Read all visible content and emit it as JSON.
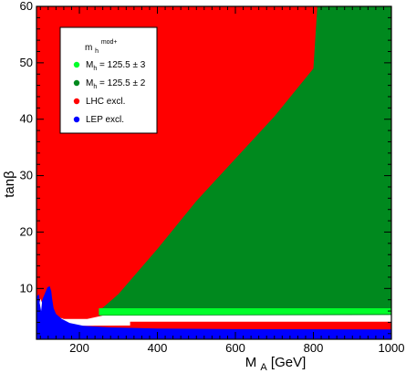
{
  "chart_data": {
    "type": "area",
    "title": "",
    "xlabel": {
      "main": "M",
      "sub": "A",
      "unit": " [GeV]"
    },
    "ylabel": {
      "main": "tan",
      "greek": "β"
    },
    "xlim": [
      90,
      1000
    ],
    "ylim": [
      1,
      60
    ],
    "x_ticks": [
      200,
      400,
      600,
      800,
      1000
    ],
    "y_ticks": [
      10,
      20,
      30,
      40,
      50,
      60
    ],
    "grid": false,
    "legend_position": "top-left",
    "legend_title": {
      "main": "m",
      "sub": "h",
      "sup": "mod+"
    },
    "series": [
      {
        "name": "LHC excl.",
        "label_main": "LHC excl.",
        "label_sub": "",
        "label_rest": "",
        "color": "#ff0000",
        "region": "above LHC exclusion boundary (high tanβ, low M_A)",
        "boundary": {
          "x": [
            90,
            150,
            200,
            250,
            300,
            400,
            500,
            600,
            700,
            800,
            810
          ],
          "y": [
            6,
            5,
            5,
            6,
            9,
            17,
            25.5,
            33,
            40.5,
            49,
            60
          ]
        }
      },
      {
        "name": "M_h = 125.5 ± 2",
        "label_main": "M",
        "label_sub": "h",
        "label_rest": " = 125.5 ± 2",
        "color": "#00891e",
        "region": "between LHC boundary and tanβ ≈ 6.5 for M_A ≳ 280 GeV",
        "lower_edge": {
          "x": [
            280,
            1000
          ],
          "y": [
            6.5,
            6.5
          ]
        }
      },
      {
        "name": "M_h = 125.5 ± 3",
        "label_main": "M",
        "label_sub": "h",
        "label_rest": " = 125.5 ± 3",
        "color": "#00ff2a",
        "region": "band tanβ ≈ 5.5 – 6.5",
        "band": {
          "x": [
            250,
            1000
          ],
          "lower": [
            5.3,
            5.5
          ],
          "upper": [
            6.5,
            6.5
          ]
        }
      },
      {
        "name": "LEP excl.",
        "label_main": "LEP excl.",
        "label_sub": "",
        "label_rest": "",
        "color": "#0000ff",
        "region": "low tanβ, tanβ ≲ 3; spike to ~10 near M_A ≈ 125",
        "boundary": {
          "x": [
            90,
            120,
            130,
            200,
            300,
            1000
          ],
          "y": [
            8.5,
            10,
            7,
            3.5,
            3,
            2.8
          ]
        }
      },
      {
        "name": "",
        "color": "#ffffff",
        "region": "allowed gap between LEP exclusion and M_h band"
      }
    ]
  }
}
